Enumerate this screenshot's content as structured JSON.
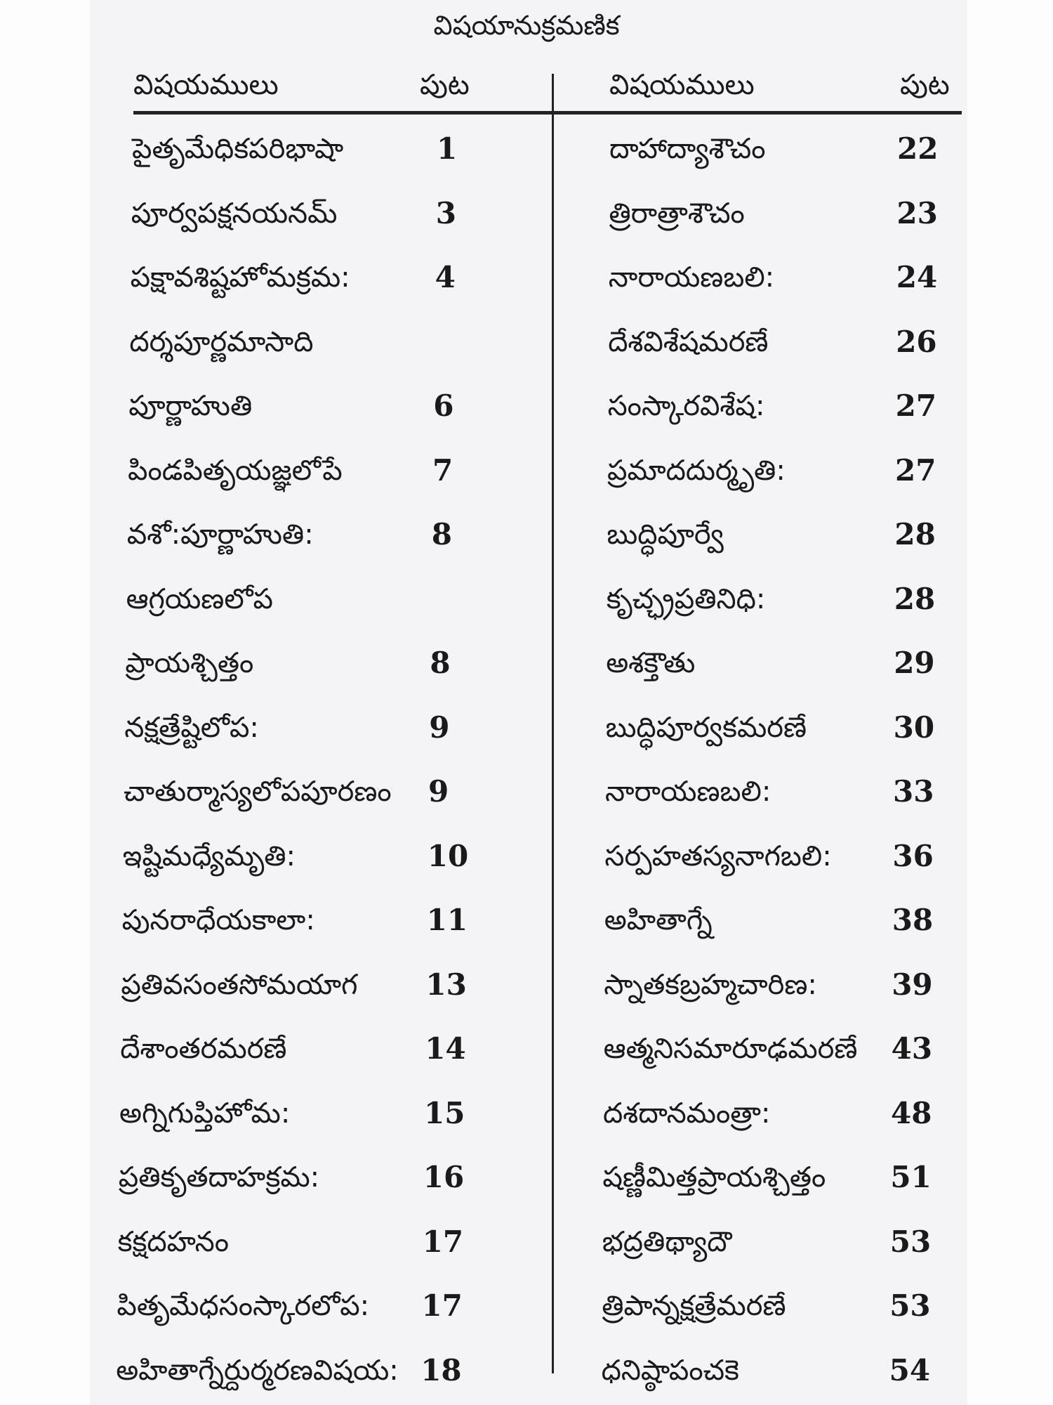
{
  "title": "విషయానుక్రమణిక",
  "headers": {
    "topics": "విషయములు",
    "page": "పుట"
  },
  "left": [
    {
      "topic": "పైతృమేధికపరిభాషా",
      "page": "1"
    },
    {
      "topic": "పూర్వపక్షనయనమ్",
      "page": "3"
    },
    {
      "topic": "పక్షావశిష్టహోమక్రమ:",
      "page": "4"
    },
    {
      "topic": "దర్శపూర్ణమాసాది",
      "page": ""
    },
    {
      "topic": "పూర్ణాహుతి",
      "page": "6"
    },
    {
      "topic": "పిండపితృయజ్ఞలోపే",
      "page": "7"
    },
    {
      "topic": "వశో:పూర్ణాహుతి:",
      "page": "8"
    },
    {
      "topic": "ఆగ్రయణలోప",
      "page": ""
    },
    {
      "topic": "ప్రాయశ్చిత్తం",
      "page": "8"
    },
    {
      "topic": "నక్షత్రేష్టిలోప:",
      "page": "9"
    },
    {
      "topic": "చాతుర్మాస్యలోపపూరణం",
      "page": "9"
    },
    {
      "topic": "ఇష్టిమధ్యేమృతి:",
      "page": "10"
    },
    {
      "topic": "పునరాధేయకాలా:",
      "page": "11"
    },
    {
      "topic": "ప్రతివసంతసోమయాగ",
      "page": "13"
    },
    {
      "topic": "దేశాంతరమరణే",
      "page": "14"
    },
    {
      "topic": "అగ్నిగుప్తిహోమ:",
      "page": "15"
    },
    {
      "topic": "ప్రతికృతదాహక్రమ:",
      "page": "16"
    },
    {
      "topic": "కక్షదహనం",
      "page": "17"
    },
    {
      "topic": "పితృమేధసంస్కారలోప:",
      "page": "17"
    },
    {
      "topic": "అహితాగ్నేర్దుర్మరణవిషయ:",
      "page": "18"
    }
  ],
  "right": [
    {
      "topic": "దాహాద్యాశౌచం",
      "page": "22"
    },
    {
      "topic": "త్రిరాత్రాశౌచం",
      "page": "23"
    },
    {
      "topic": "నారాయణబలి:",
      "page": "24"
    },
    {
      "topic": "దేశవిశేషమరణే",
      "page": "26"
    },
    {
      "topic": "సంస్కారవిశేష:",
      "page": "27"
    },
    {
      "topic": "ప్రమాదదుర్మృతి:",
      "page": "27"
    },
    {
      "topic": "బుద్ధిపూర్వే",
      "page": "28"
    },
    {
      "topic": "కృచ్ఛ్రప్రతినిధి:",
      "page": "28"
    },
    {
      "topic": "అశక్తౌతు",
      "page": "29"
    },
    {
      "topic": "బుద్ధిపూర్వకమరణే",
      "page": "30"
    },
    {
      "topic": "నారాయణబలి:",
      "page": "33"
    },
    {
      "topic": "సర్పహతస్యనాగబలి:",
      "page": "36"
    },
    {
      "topic": "అహితాగ్నే",
      "page": "38"
    },
    {
      "topic": "స్నాతకబ్రహ్మచారిణ:",
      "page": "39"
    },
    {
      "topic": "ఆత్మనిసమారూఢమరణే",
      "page": "43"
    },
    {
      "topic": "దశదానమంత్రా:",
      "page": "48"
    },
    {
      "topic": "షణ్ణీమిత్తప్రాయశ్చిత్తం",
      "page": "51"
    },
    {
      "topic": "భద్రతిథ్యాదౌ",
      "page": "53"
    },
    {
      "topic": "త్రిపాన్నక్షత్రేమరణే",
      "page": "53"
    },
    {
      "topic": "ధనిష్ఠాపంచకె",
      "page": "54"
    }
  ]
}
